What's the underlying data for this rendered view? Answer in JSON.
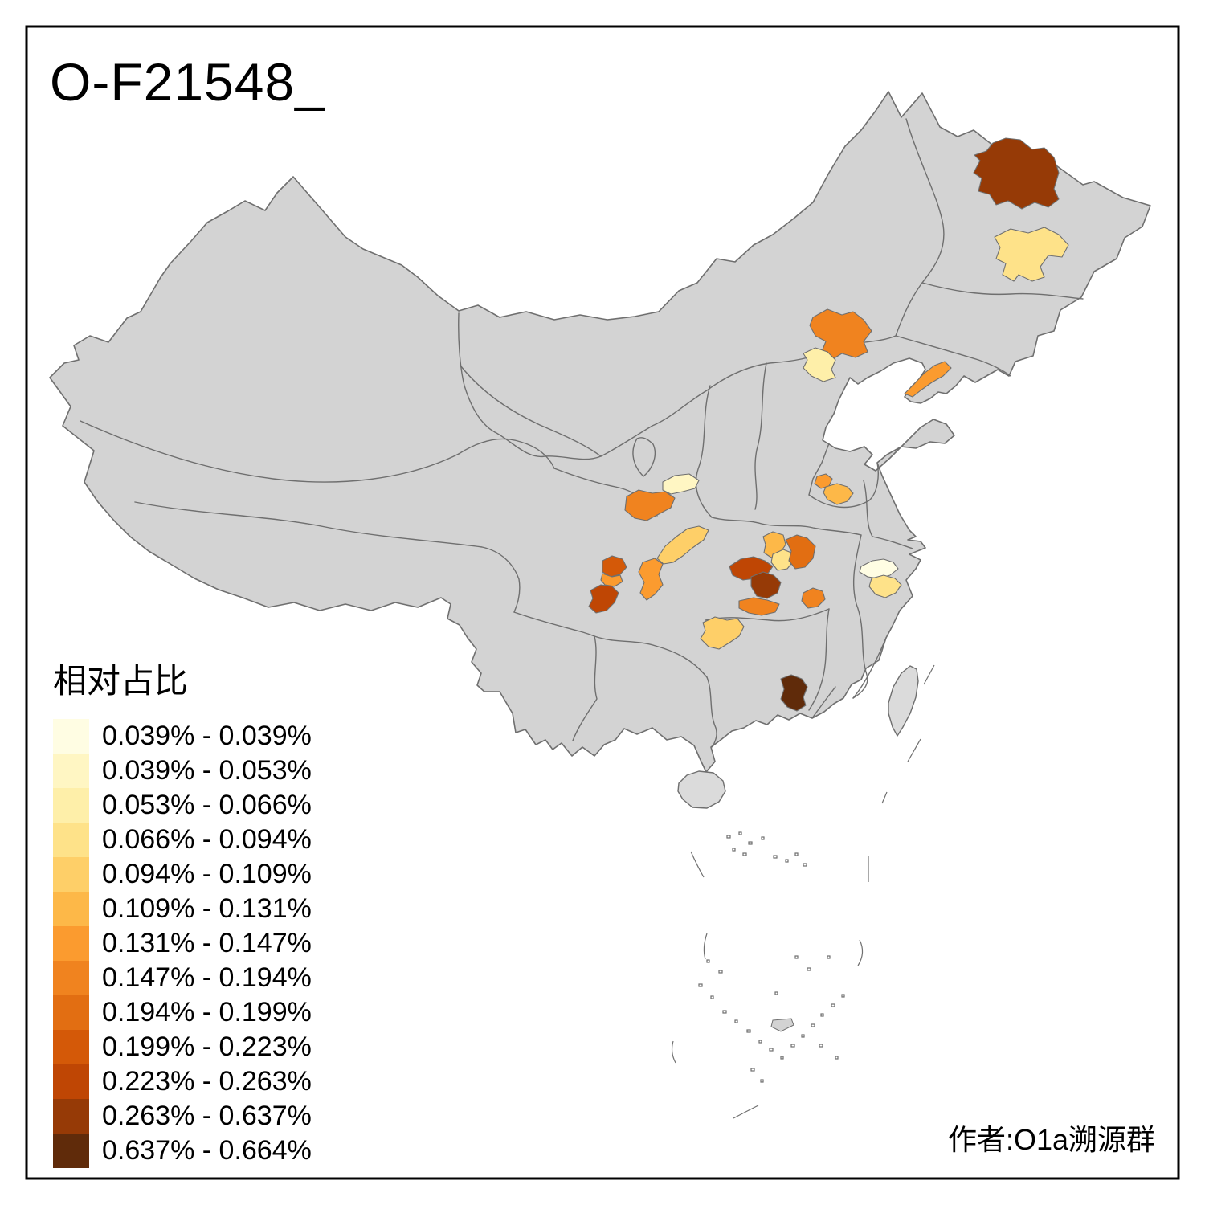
{
  "title": "O-F21548_",
  "attribution": "作者:O1a溯源群",
  "legend": {
    "title": "相对占比",
    "items": [
      {
        "label": "0.039% - 0.039%",
        "color": "#FFFDE3"
      },
      {
        "label": "0.039% - 0.053%",
        "color": "#FFF6C3"
      },
      {
        "label": "0.053% - 0.066%",
        "color": "#FEEFA9"
      },
      {
        "label": "0.066% - 0.094%",
        "color": "#FEE289"
      },
      {
        "label": "0.094% - 0.109%",
        "color": "#FECF68"
      },
      {
        "label": "0.109% - 0.131%",
        "color": "#FDB848"
      },
      {
        "label": "0.131% - 0.147%",
        "color": "#FB9B2F"
      },
      {
        "label": "0.147% - 0.194%",
        "color": "#F0831F"
      },
      {
        "label": "0.194% - 0.199%",
        "color": "#E26E12"
      },
      {
        "label": "0.199% - 0.223%",
        "color": "#D45908"
      },
      {
        "label": "0.223% - 0.263%",
        "color": "#BF4604"
      },
      {
        "label": "0.263% - 0.637%",
        "color": "#963A06"
      },
      {
        "label": "0.637% - 0.664%",
        "color": "#602B0A"
      }
    ]
  },
  "map": {
    "background_color": "#FFFFFF",
    "land_color": "#D3D3D3",
    "island_land_color": "#DBDBDB",
    "boundary_color": "#6F6F6F",
    "frame_color": "#000000",
    "regions": [
      {
        "id": "r01",
        "class": 12
      },
      {
        "id": "r02",
        "class": 4
      },
      {
        "id": "r03",
        "class": 8
      },
      {
        "id": "r04",
        "class": 3
      },
      {
        "id": "r05",
        "class": 7
      },
      {
        "id": "r06",
        "class": 2
      },
      {
        "id": "r07",
        "class": 8
      },
      {
        "id": "r08",
        "class": 5
      },
      {
        "id": "r09",
        "class": 7
      },
      {
        "id": "r10",
        "class": 10
      },
      {
        "id": "r11",
        "class": 7
      },
      {
        "id": "r12",
        "class": 11
      },
      {
        "id": "r13",
        "class": 11
      },
      {
        "id": "r14",
        "class": 12
      },
      {
        "id": "r15",
        "class": 8
      },
      {
        "id": "r16",
        "class": 6
      },
      {
        "id": "r17",
        "class": 4
      },
      {
        "id": "r18",
        "class": 9
      },
      {
        "id": "r19",
        "class": 8
      },
      {
        "id": "r20",
        "class": 5
      },
      {
        "id": "r21",
        "class": 7
      },
      {
        "id": "r22",
        "class": 6
      },
      {
        "id": "r23",
        "class": 1
      },
      {
        "id": "r24",
        "class": 4
      },
      {
        "id": "r25",
        "class": 13
      }
    ]
  }
}
